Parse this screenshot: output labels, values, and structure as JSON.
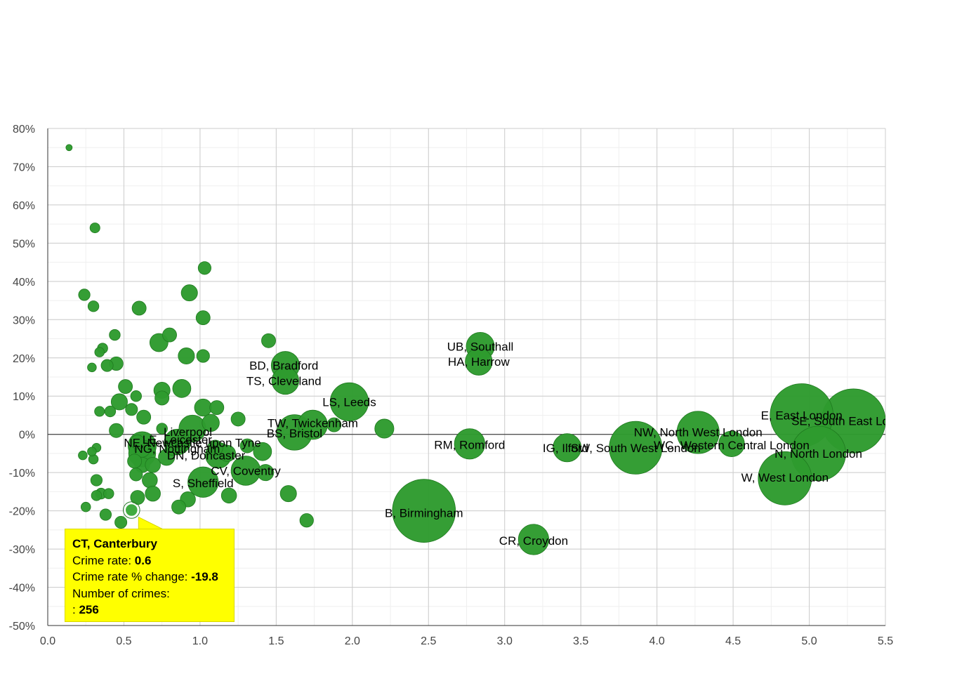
{
  "chart_data": {
    "type": "scatter",
    "title": "",
    "xlabel": "",
    "ylabel": "",
    "xlim": [
      0,
      5.5
    ],
    "ylim": [
      -50,
      80
    ],
    "x_ticks": [
      "0.0",
      "0.5",
      "1.0",
      "1.5",
      "2.0",
      "2.5",
      "3.0",
      "3.5",
      "4.0",
      "4.5",
      "5.0",
      "5.5"
    ],
    "y_ticks": [
      "80%",
      "70%",
      "60%",
      "50%",
      "40%",
      "30%",
      "20%",
      "10%",
      "0%",
      "-10%",
      "-20%",
      "-30%",
      "-40%",
      "-50%"
    ],
    "grid": true,
    "colors": {
      "bubble": "#2e9b2e",
      "bubble_stroke": "#1f7a1f",
      "tooltip_bg": "#ffff00"
    },
    "points": [
      {
        "name": "UB, Southall",
        "x": 2.84,
        "y": 23.0,
        "size": 1200
      },
      {
        "name": "HA, Harrow",
        "x": 2.83,
        "y": 19.0,
        "size": 1100
      },
      {
        "name": "BD, Bradford",
        "x": 1.56,
        "y": 18.0,
        "size": 1200
      },
      {
        "name": "TS, Cleveland",
        "x": 1.56,
        "y": 14.0,
        "size": 1100
      },
      {
        "name": "LS, Leeds",
        "x": 1.98,
        "y": 8.5,
        "size": 2200
      },
      {
        "name": "TW, Twickenham",
        "x": 1.74,
        "y": 2.5,
        "size": 1300
      },
      {
        "name": "BS, Bristol",
        "x": 1.62,
        "y": 0.5,
        "size": 1900
      },
      {
        "name": "Liverpool",
        "x": 0.95,
        "y": 1.5,
        "size": 1100
      },
      {
        "name": "NE, Newcastle upon Tyne",
        "x": 0.62,
        "y": -3.0,
        "size": 1200
      },
      {
        "name": "LE, Leicester",
        "x": 0.85,
        "y": -2.0,
        "size": 1000
      },
      {
        "name": "NG, Nottingham",
        "x": 0.62,
        "y": -5.0,
        "size": 1100
      },
      {
        "name": "DN, Doncaster",
        "x": 1.12,
        "y": -5.5,
        "size": 1000
      },
      {
        "name": "CV, Coventry",
        "x": 1.3,
        "y": -9.5,
        "size": 1300
      },
      {
        "name": "S, Sheffield",
        "x": 1.02,
        "y": -12.5,
        "size": 1400
      },
      {
        "name": "B, Birmingham",
        "x": 2.47,
        "y": -20.0,
        "size": 6000
      },
      {
        "name": "RM, Romford",
        "x": 2.77,
        "y": -2.5,
        "size": 1400
      },
      {
        "name": "CR, Croydon",
        "x": 3.19,
        "y": -27.5,
        "size": 1400
      },
      {
        "name": "IG, Ilford",
        "x": 3.41,
        "y": -3.5,
        "size": 1200
      },
      {
        "name": "SW, South West London",
        "x": 3.86,
        "y": -3.5,
        "size": 4200
      },
      {
        "name": "NW, North West London",
        "x": 4.27,
        "y": 0.5,
        "size": 2700
      },
      {
        "name": "WC, Western Central London",
        "x": 4.49,
        "y": -2.5,
        "size": 1000
      },
      {
        "name": "E, East London",
        "x": 4.95,
        "y": 5.0,
        "size": 6000
      },
      {
        "name": "SE, South East London",
        "x": 5.29,
        "y": 3.5,
        "size": 6200
      },
      {
        "name": "N, North London",
        "x": 5.06,
        "y": -5.0,
        "size": 4500
      },
      {
        "name": "W, West London",
        "x": 4.84,
        "y": -11.5,
        "size": 4300
      },
      {
        "name": "CT, Canterbury",
        "x": 0.55,
        "y": -19.8,
        "size": 256
      },
      {
        "name": "",
        "x": 0.14,
        "y": 75.0,
        "size": 60
      },
      {
        "name": "",
        "x": 0.31,
        "y": 54.0,
        "size": 150
      },
      {
        "name": "",
        "x": 1.03,
        "y": 43.5,
        "size": 250
      },
      {
        "name": "",
        "x": 0.24,
        "y": 36.5,
        "size": 200
      },
      {
        "name": "",
        "x": 0.3,
        "y": 33.5,
        "size": 180
      },
      {
        "name": "",
        "x": 0.6,
        "y": 33.0,
        "size": 300
      },
      {
        "name": "",
        "x": 0.93,
        "y": 37.0,
        "size": 400
      },
      {
        "name": "",
        "x": 1.02,
        "y": 30.5,
        "size": 300
      },
      {
        "name": "",
        "x": 0.44,
        "y": 26.0,
        "size": 180
      },
      {
        "name": "",
        "x": 0.36,
        "y": 22.5,
        "size": 160
      },
      {
        "name": "",
        "x": 0.34,
        "y": 21.5,
        "size": 140
      },
      {
        "name": "",
        "x": 0.8,
        "y": 26.0,
        "size": 300
      },
      {
        "name": "",
        "x": 0.73,
        "y": 24.0,
        "size": 500
      },
      {
        "name": "",
        "x": 1.45,
        "y": 24.5,
        "size": 300
      },
      {
        "name": "",
        "x": 0.29,
        "y": 17.5,
        "size": 120
      },
      {
        "name": "",
        "x": 0.39,
        "y": 18.0,
        "size": 220
      },
      {
        "name": "",
        "x": 0.45,
        "y": 18.5,
        "size": 280
      },
      {
        "name": "",
        "x": 0.91,
        "y": 20.5,
        "size": 400
      },
      {
        "name": "",
        "x": 1.02,
        "y": 20.5,
        "size": 250
      },
      {
        "name": "",
        "x": 0.51,
        "y": 12.5,
        "size": 300
      },
      {
        "name": "",
        "x": 0.58,
        "y": 10.0,
        "size": 180
      },
      {
        "name": "",
        "x": 0.75,
        "y": 11.5,
        "size": 400
      },
      {
        "name": "",
        "x": 0.75,
        "y": 9.5,
        "size": 300
      },
      {
        "name": "",
        "x": 0.88,
        "y": 12.0,
        "size": 500
      },
      {
        "name": "",
        "x": 0.47,
        "y": 8.5,
        "size": 400
      },
      {
        "name": "",
        "x": 0.34,
        "y": 6.0,
        "size": 150
      },
      {
        "name": "",
        "x": 0.41,
        "y": 6.0,
        "size": 180
      },
      {
        "name": "",
        "x": 0.55,
        "y": 6.5,
        "size": 220
      },
      {
        "name": "",
        "x": 0.63,
        "y": 4.5,
        "size": 300
      },
      {
        "name": "",
        "x": 1.02,
        "y": 7.0,
        "size": 450
      },
      {
        "name": "",
        "x": 1.11,
        "y": 7.0,
        "size": 300
      },
      {
        "name": "",
        "x": 1.25,
        "y": 4.0,
        "size": 300
      },
      {
        "name": "",
        "x": 1.07,
        "y": 3.0,
        "size": 450
      },
      {
        "name": "",
        "x": 0.45,
        "y": 1.0,
        "size": 300
      },
      {
        "name": "",
        "x": 0.75,
        "y": 1.5,
        "size": 180
      },
      {
        "name": "",
        "x": 0.59,
        "y": -2.0,
        "size": 300
      },
      {
        "name": "",
        "x": 0.62,
        "y": -4.0,
        "size": 350
      },
      {
        "name": "",
        "x": 0.82,
        "y": -3.5,
        "size": 350
      },
      {
        "name": "",
        "x": 0.89,
        "y": -2.5,
        "size": 300
      },
      {
        "name": "",
        "x": 1.1,
        "y": -3.5,
        "size": 350
      },
      {
        "name": "",
        "x": 1.18,
        "y": -5.0,
        "size": 400
      },
      {
        "name": "",
        "x": 1.31,
        "y": -3.0,
        "size": 300
      },
      {
        "name": "",
        "x": 1.41,
        "y": -4.5,
        "size": 500
      },
      {
        "name": "",
        "x": 0.78,
        "y": -6.0,
        "size": 400
      },
      {
        "name": "",
        "x": 0.57,
        "y": -7.0,
        "size": 300
      },
      {
        "name": "",
        "x": 0.62,
        "y": -8.0,
        "size": 350
      },
      {
        "name": "",
        "x": 0.69,
        "y": -8.0,
        "size": 350
      },
      {
        "name": "",
        "x": 0.32,
        "y": -3.5,
        "size": 120
      },
      {
        "name": "",
        "x": 0.29,
        "y": -4.5,
        "size": 120
      },
      {
        "name": "",
        "x": 0.23,
        "y": -5.5,
        "size": 120
      },
      {
        "name": "",
        "x": 0.3,
        "y": -6.5,
        "size": 140
      },
      {
        "name": "",
        "x": 0.58,
        "y": -10.5,
        "size": 250
      },
      {
        "name": "",
        "x": 0.67,
        "y": -12.0,
        "size": 350
      },
      {
        "name": "",
        "x": 0.32,
        "y": -12.0,
        "size": 200
      },
      {
        "name": "",
        "x": 0.35,
        "y": -15.5,
        "size": 180
      },
      {
        "name": "",
        "x": 0.4,
        "y": -15.5,
        "size": 160
      },
      {
        "name": "",
        "x": 0.32,
        "y": -16.0,
        "size": 160
      },
      {
        "name": "",
        "x": 0.59,
        "y": -16.5,
        "size": 300
      },
      {
        "name": "",
        "x": 0.69,
        "y": -15.5,
        "size": 350
      },
      {
        "name": "",
        "x": 0.92,
        "y": -17.0,
        "size": 350
      },
      {
        "name": "",
        "x": 1.19,
        "y": -16.0,
        "size": 350
      },
      {
        "name": "",
        "x": 1.43,
        "y": -10.0,
        "size": 400
      },
      {
        "name": "",
        "x": 1.58,
        "y": -15.5,
        "size": 400
      },
      {
        "name": "",
        "x": 0.25,
        "y": -19.0,
        "size": 140
      },
      {
        "name": "",
        "x": 0.38,
        "y": -21.0,
        "size": 200
      },
      {
        "name": "",
        "x": 0.86,
        "y": -19.0,
        "size": 300
      },
      {
        "name": "",
        "x": 0.48,
        "y": -23.0,
        "size": 220
      },
      {
        "name": "",
        "x": 1.7,
        "y": -22.5,
        "size": 280
      },
      {
        "name": "",
        "x": 1.88,
        "y": 2.5,
        "size": 300
      },
      {
        "name": "",
        "x": 2.21,
        "y": 1.5,
        "size": 550
      }
    ],
    "labels": [
      {
        "text": "UB, Southall",
        "x": 2.84,
        "y": 23.0
      },
      {
        "text": "HA, Harrow",
        "x": 2.83,
        "y": 19.0
      },
      {
        "text": "BD, Bradford",
        "x": 1.55,
        "y": 18.0
      },
      {
        "text": "TS, Cleveland",
        "x": 1.55,
        "y": 14.0
      },
      {
        "text": "LS, Leeds",
        "x": 1.98,
        "y": 8.5
      },
      {
        "text": "TW, Twickenham",
        "x": 1.74,
        "y": 3.0
      },
      {
        "text": "BS, Bristol",
        "x": 1.62,
        "y": 0.3
      },
      {
        "text": "Liverpool",
        "x": 0.92,
        "y": 0.7
      },
      {
        "text": "NE, Newcastle upon Tyne",
        "x": 0.95,
        "y": -2.2
      },
      {
        "text": "LE, Leicester",
        "x": 0.85,
        "y": -1.3
      },
      {
        "text": "NG, Nottingham",
        "x": 0.85,
        "y": -3.7
      },
      {
        "text": "DN, Doncaster",
        "x": 1.04,
        "y": -5.5
      },
      {
        "text": "CV, Coventry",
        "x": 1.3,
        "y": -9.5
      },
      {
        "text": "S, Sheffield",
        "x": 1.02,
        "y": -12.7
      },
      {
        "text": "B, Birmingham",
        "x": 2.47,
        "y": -20.5
      },
      {
        "text": "RM, Romford",
        "x": 2.77,
        "y": -2.7
      },
      {
        "text": "CR, Croydon",
        "x": 3.19,
        "y": -27.8
      },
      {
        "text": "IG, Ilford",
        "x": 3.4,
        "y": -3.5
      },
      {
        "text": "SW, South West London",
        "x": 3.86,
        "y": -3.5
      },
      {
        "text": "NW, North West London",
        "x": 4.27,
        "y": 0.6
      },
      {
        "text": "WC, Western Central London",
        "x": 4.49,
        "y": -2.8
      },
      {
        "text": "E, East London",
        "x": 4.95,
        "y": 5.0
      },
      {
        "text": "SE, South East London",
        "x": 5.29,
        "y": 3.5
      },
      {
        "text": "N, North London",
        "x": 5.06,
        "y": -5.0
      },
      {
        "text": "W, West London",
        "x": 4.84,
        "y": -11.3
      }
    ],
    "tooltip": {
      "title": "CT, Canterbury",
      "rate_label": "Crime rate: ",
      "rate_value": "0.6",
      "change_label": "Crime rate % change: ",
      "change_value": "-19.8",
      "count_label": "Number of crimes:",
      "count_prefix": ": ",
      "count_value": "256",
      "x": 0.55,
      "y": -19.8
    }
  }
}
